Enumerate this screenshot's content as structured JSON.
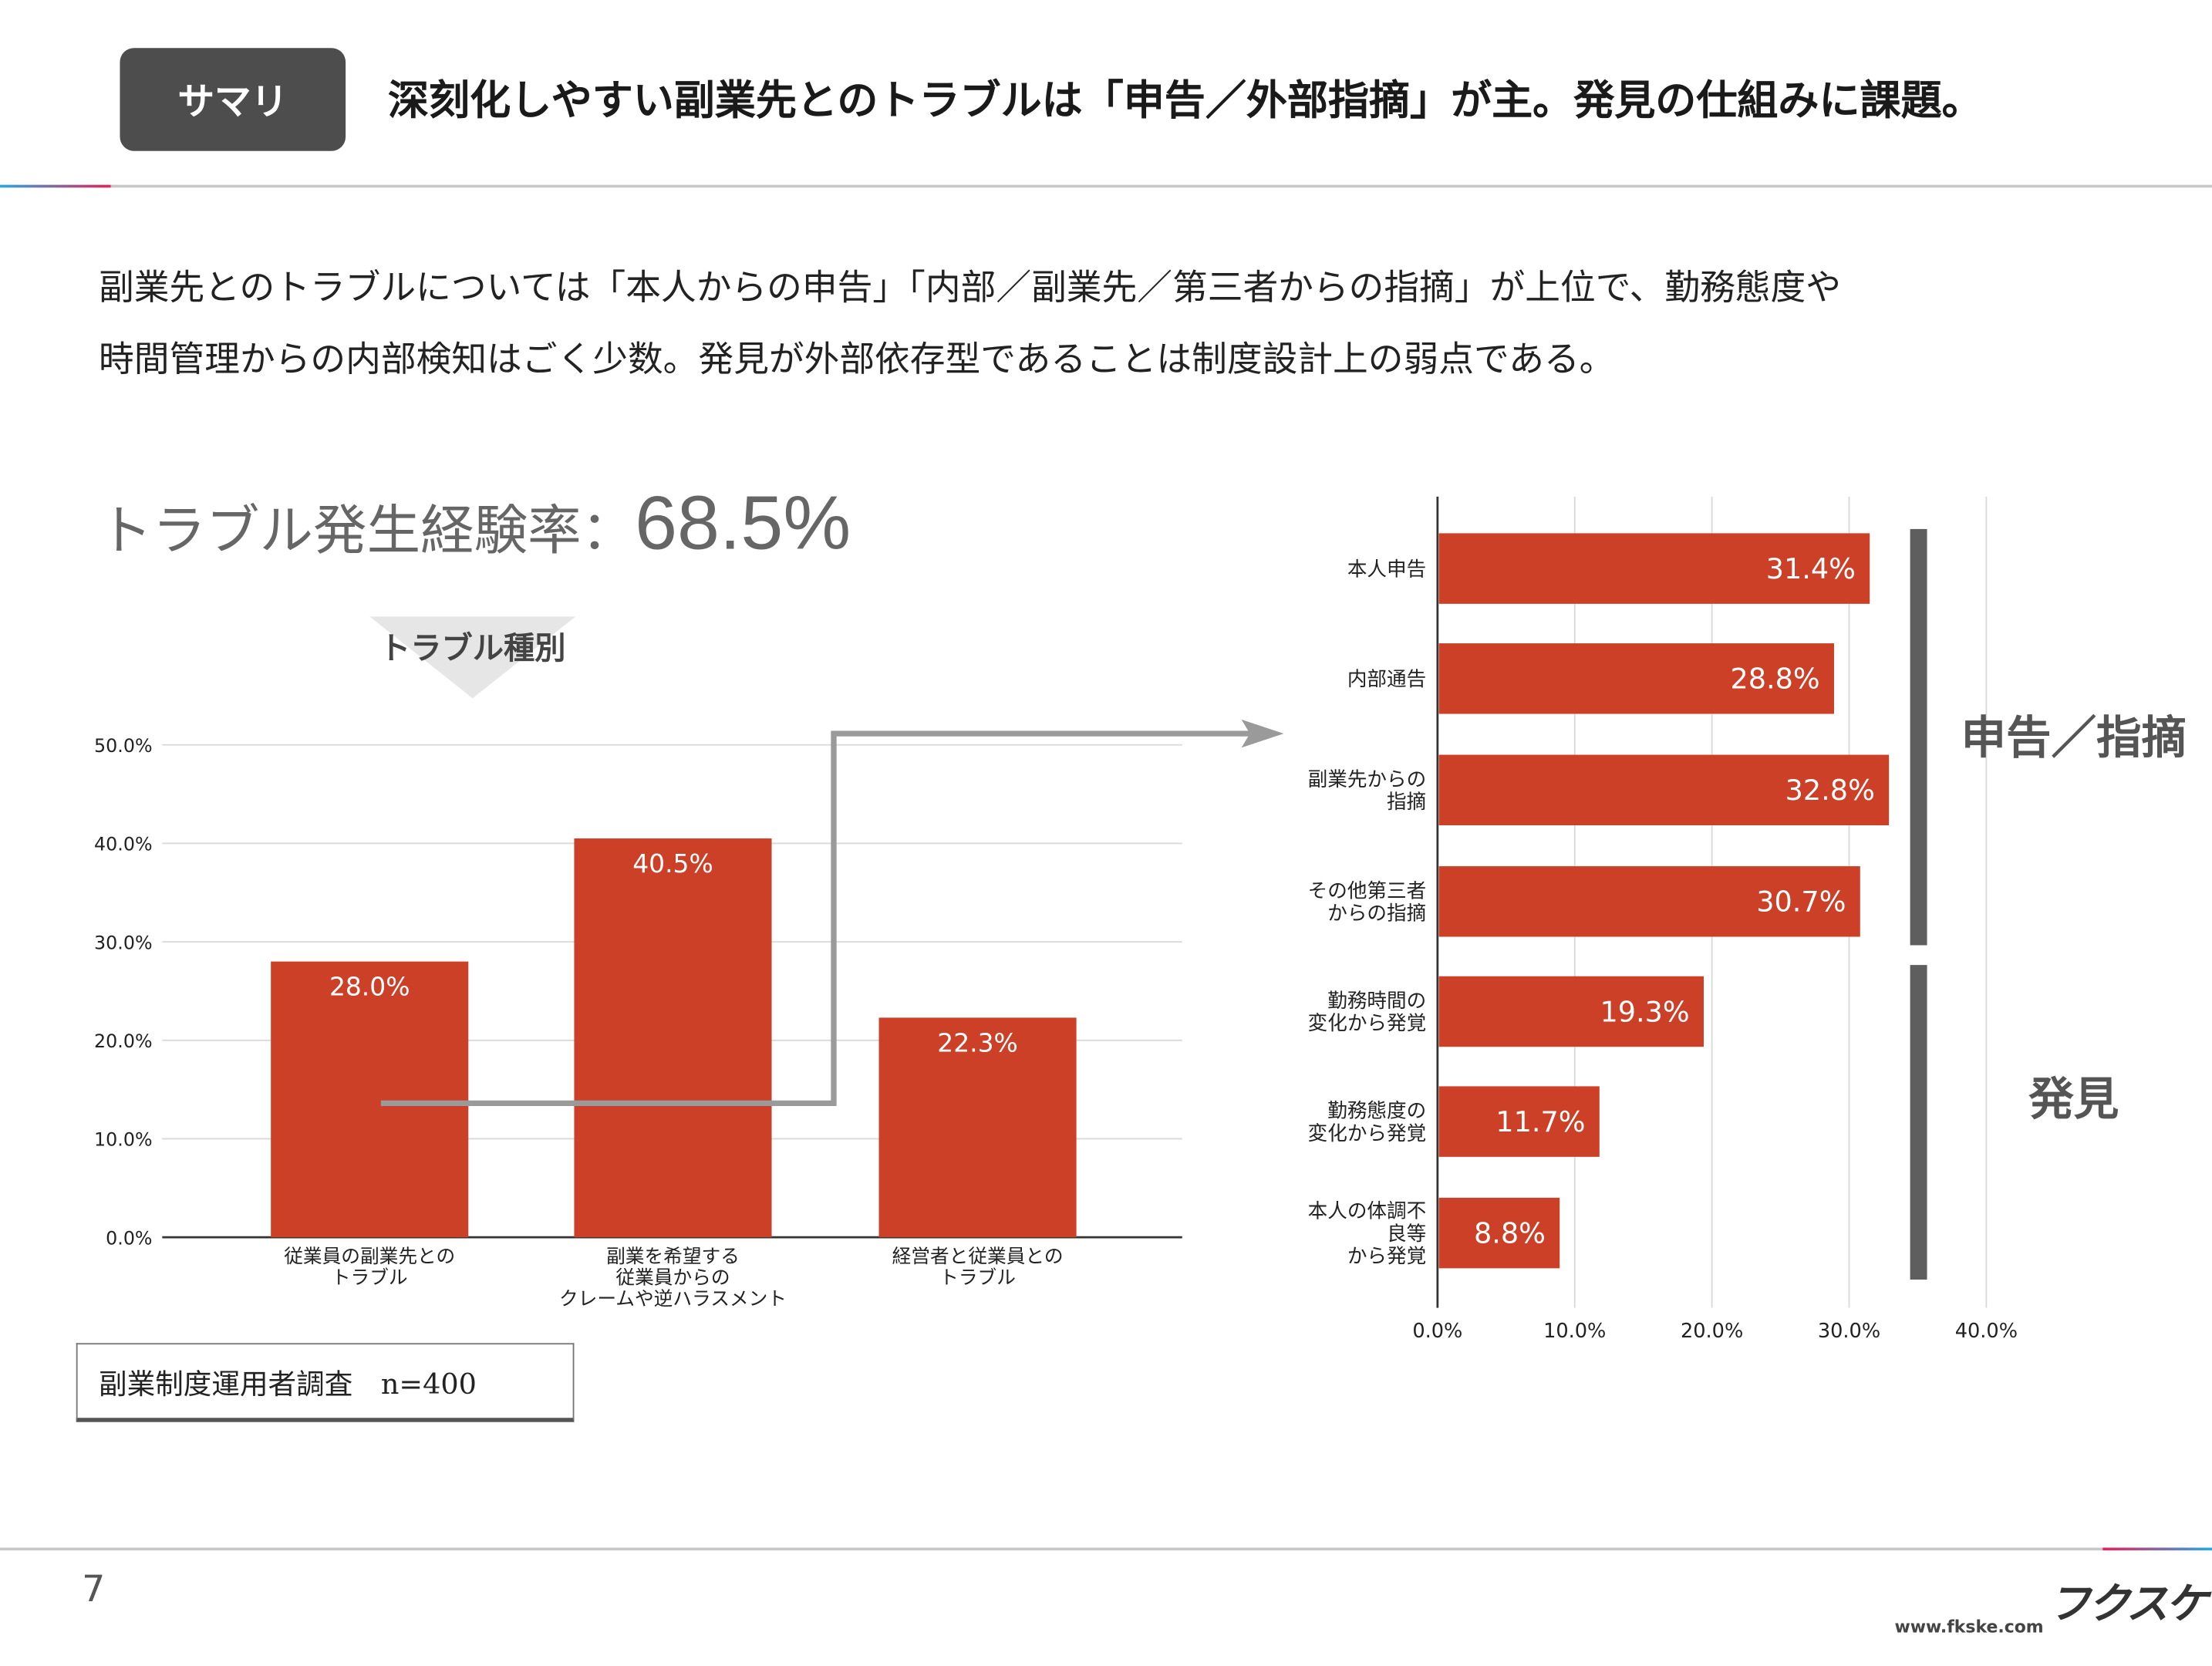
{
  "header": {
    "badge": "サマリ",
    "title": "深刻化しやすい副業先とのトラブルは「申告／外部指摘」が主。発見の仕組みに課題。"
  },
  "summary": {
    "line1": "副業先とのトラブルについては「本人からの申告」「内部／副業先／第三者からの指摘」が上位で、勤務態度や",
    "line2": "時間管理からの内部検知はごく少数。発見が外部依存型であることは制度設計上の弱点である。"
  },
  "headline": {
    "label": "トラブル発生経験率：",
    "value": "68.5%"
  },
  "source_note": "副業制度運用者調査　n=400",
  "footer": {
    "page": "7",
    "url": "www.fkske.com",
    "logo": "フクスケ"
  },
  "colors": {
    "bar": "#cc4027",
    "bracket": "#5e5e5e",
    "grid": "#d9d9d9"
  },
  "chart_data": [
    {
      "type": "bar",
      "title": "トラブル種別",
      "categories": [
        [
          "従業員の副業先との",
          "トラブル"
        ],
        [
          "副業を希望する",
          "従業員からの",
          "クレームや逆ハラスメント"
        ],
        [
          "経営者と従業員との",
          "トラブル"
        ]
      ],
      "values": [
        28.0,
        40.5,
        22.3
      ],
      "value_labels": [
        "28.0%",
        "40.5%",
        "22.3%"
      ],
      "ylim": [
        0,
        50
      ],
      "yticks": [
        "0.0%",
        "10.0%",
        "20.0%",
        "30.0%",
        "40.0%",
        "50.0%"
      ],
      "grid": true
    },
    {
      "type": "bar",
      "orientation": "horizontal",
      "categories": [
        [
          "本人申告"
        ],
        [
          "内部通告"
        ],
        [
          "副業先からの",
          "指摘"
        ],
        [
          "その他第三者",
          "からの指摘"
        ],
        [
          "勤務時間の",
          "変化から発覚"
        ],
        [
          "勤務態度の",
          "変化から発覚"
        ],
        [
          "本人の体調不",
          "良等",
          "から発覚"
        ]
      ],
      "values": [
        31.4,
        28.8,
        32.8,
        30.7,
        19.3,
        11.7,
        8.8
      ],
      "value_labels": [
        "31.4%",
        "28.8%",
        "32.8%",
        "30.7%",
        "19.3%",
        "11.7%",
        "8.8%"
      ],
      "xlim": [
        0,
        40
      ],
      "xticks": [
        "0.0%",
        "10.0%",
        "20.0%",
        "30.0%",
        "40.0%"
      ],
      "grid": true,
      "groups": [
        {
          "label": "申告／指摘",
          "from": 0,
          "to": 3
        },
        {
          "label": "発見",
          "from": 4,
          "to": 6
        }
      ]
    }
  ]
}
